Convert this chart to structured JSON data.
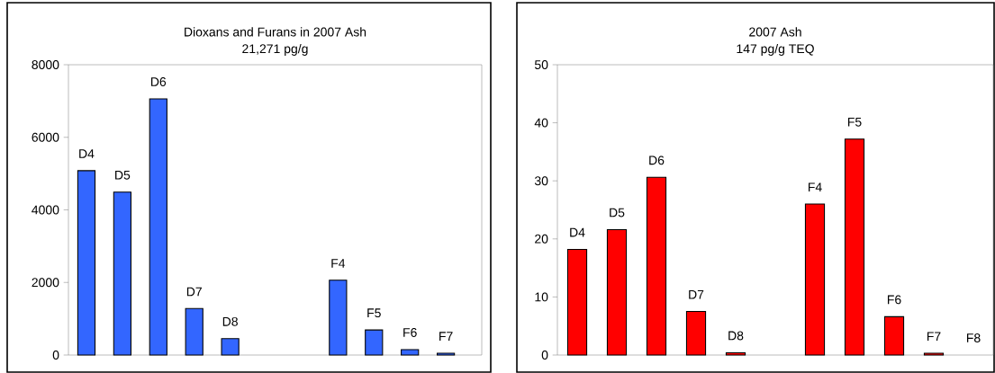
{
  "chart_data": [
    {
      "type": "bar",
      "title": "Dioxans and Furans in 2007 Ash",
      "subtitle": "21,271 pg/g",
      "categories": [
        "D4",
        "D5",
        "D6",
        "D7",
        "D8",
        null,
        null,
        "F4",
        "F5",
        "F6",
        "F7"
      ],
      "values": [
        5080,
        4490,
        7060,
        1280,
        450,
        null,
        null,
        2060,
        690,
        150,
        50
      ],
      "color": "#3366ff",
      "ylim": [
        0,
        8000
      ],
      "yticks": [
        0,
        2000,
        4000,
        6000,
        8000
      ]
    },
    {
      "type": "bar",
      "title": "2007 Ash",
      "subtitle": "147 pg/g TEQ",
      "categories": [
        "D4",
        "D5",
        "D6",
        "D7",
        "D8",
        null,
        "F4",
        "F5",
        "F6",
        "F7",
        "F8"
      ],
      "values": [
        18.2,
        21.6,
        30.6,
        7.5,
        0.4,
        null,
        26.0,
        37.2,
        6.6,
        0.3,
        null
      ],
      "color": "#ff0000",
      "ylim": [
        0,
        50
      ],
      "yticks": [
        0,
        10,
        20,
        30,
        40,
        50
      ]
    }
  ]
}
